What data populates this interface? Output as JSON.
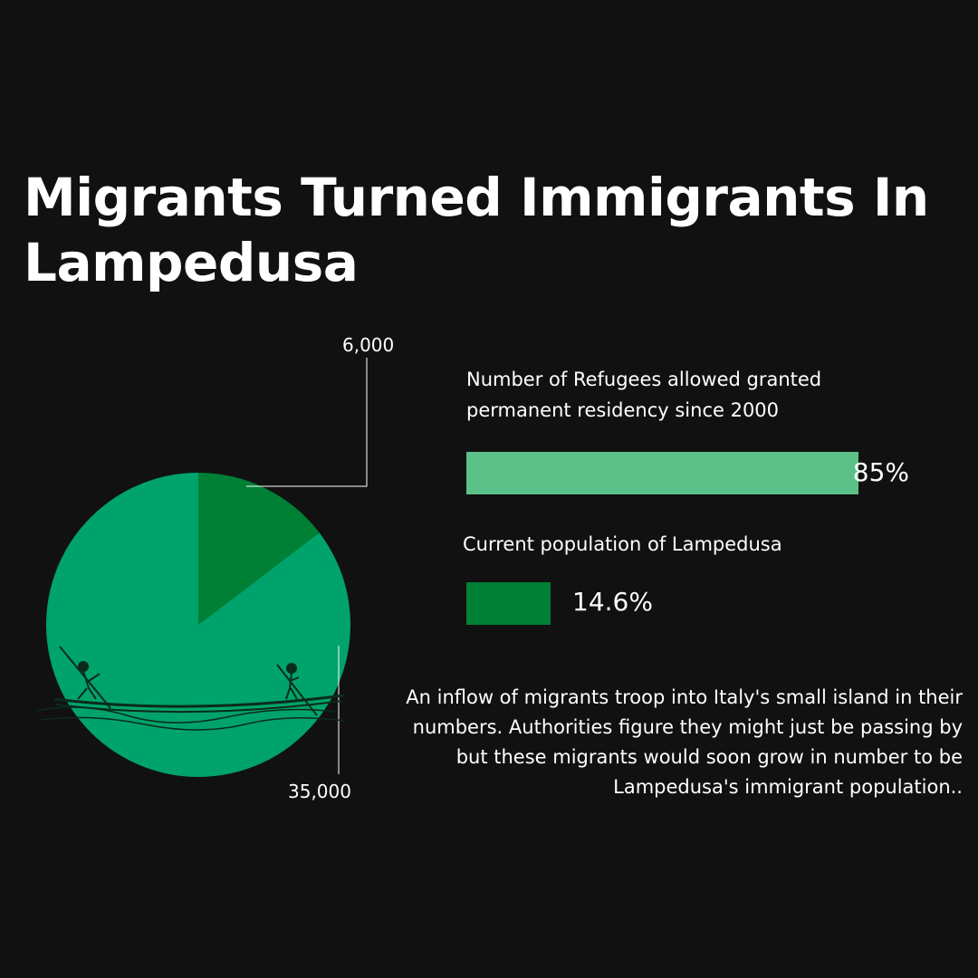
{
  "title": "Migrants Turned Immigrants In Lampedusa",
  "chart_data": [
    {
      "type": "pie",
      "slices": [
        {
          "label": "6,000",
          "value": 6000,
          "color": "#008035"
        },
        {
          "label": "35,000",
          "value": 35000,
          "color": "#00a36b"
        }
      ]
    },
    {
      "type": "bar",
      "categories": [
        "Number of Refugees allowed  granted permanent residency since 2000",
        "Current population of Lampedusa"
      ],
      "values": [
        85,
        14.6
      ],
      "value_labels": [
        "85%",
        "14.6%"
      ],
      "colors": [
        "#5bc188",
        "#008035"
      ]
    }
  ],
  "bars": {
    "refugees": {
      "label": "Number of Refugees allowed  granted permanent residency since 2000",
      "value_text": "85%",
      "fraction": 0.85
    },
    "population": {
      "label": "Current population of Lampedusa",
      "value_text": "14.6%"
    }
  },
  "paragraph": "An inflow of migrants troop into Italy's small island in their numbers. Authorities figure they might just be passing by but these migrants would soon grow in number to be Lampedusa's immigrant population..",
  "illustration": "boat-with-rowers-icon"
}
